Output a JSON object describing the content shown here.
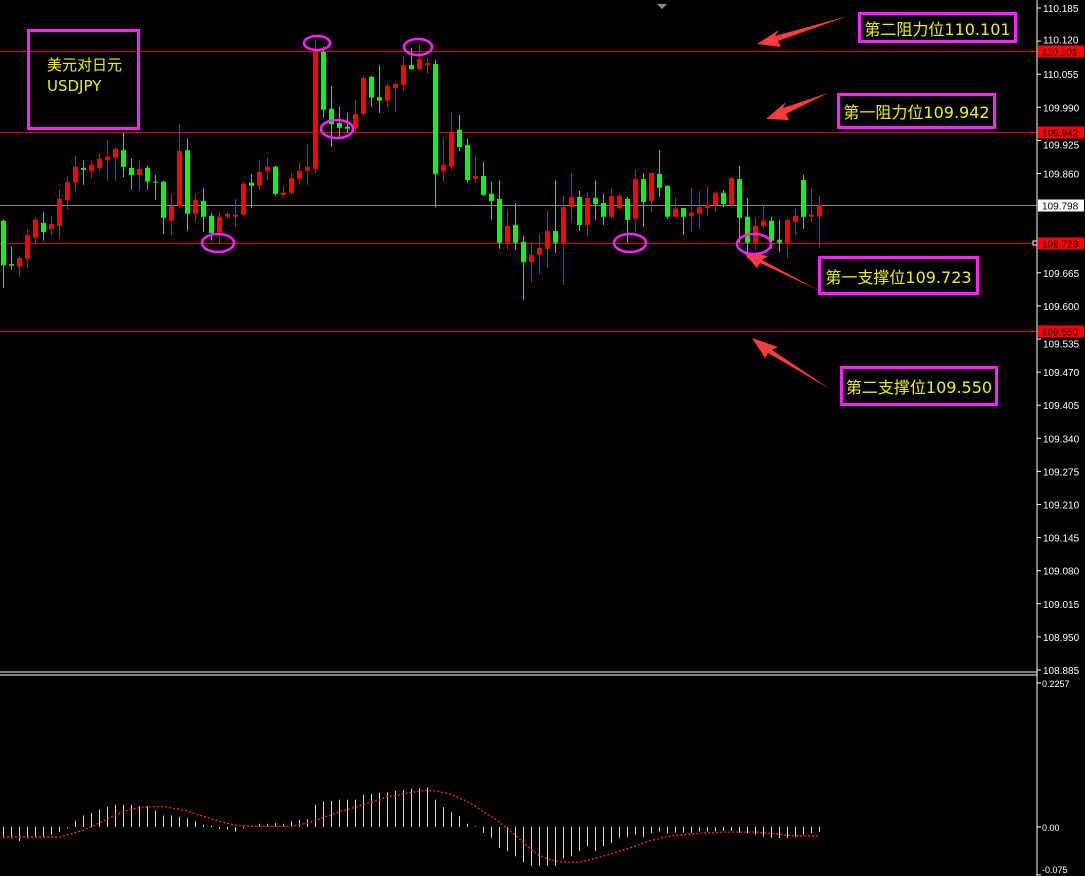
{
  "symbol": {
    "name_cn": "美元对日元",
    "name": "USDJPY"
  },
  "annotations": {
    "r2": "第二阻力位110.101",
    "r1": "第一阻力位109.942",
    "s1": "第一支撑位109.723",
    "s2": "第二支撑位109.550"
  },
  "colors": {
    "bull": "#00ff00",
    "bear": "#ff0000",
    "level": "#e00000",
    "current": "#8c8c8c",
    "signal": "#ff2020",
    "hist": "#d8d8d8",
    "annotation_box": "#ff22ff",
    "annotation_text": "#f2f200",
    "arrow": "#ff3c3c"
  },
  "chart_data": [
    {
      "type": "candlestick",
      "title": "",
      "ylim": [
        108.885,
        110.185
      ],
      "y_ticks": [
        "110.185",
        "110.120",
        "110.055",
        "109.990",
        "109.925",
        "109.860",
        "109.665",
        "109.600",
        "109.535",
        "109.470",
        "109.405",
        "109.340",
        "109.275",
        "109.210",
        "109.145",
        "109.080",
        "109.015",
        "108.950",
        "108.885"
      ],
      "levels": [
        {
          "value": 110.101,
          "label": "110.101",
          "kind": "resistance"
        },
        {
          "value": 109.942,
          "label": "109.942",
          "kind": "resistance"
        },
        {
          "value": 109.723,
          "label": "109.723",
          "kind": "support"
        },
        {
          "value": 109.55,
          "label": "109.550",
          "kind": "support"
        }
      ],
      "current_price": {
        "value": 109.798,
        "label": "109.798"
      },
      "ohlc": [
        [
          109.68,
          109.77,
          109.635,
          109.767
        ],
        [
          109.679,
          109.716,
          109.671,
          109.682
        ],
        [
          109.694,
          109.698,
          109.657,
          109.677
        ],
        [
          109.739,
          109.751,
          109.675,
          109.692
        ],
        [
          109.769,
          109.773,
          109.72,
          109.734
        ],
        [
          109.745,
          109.785,
          109.728,
          109.763
        ],
        [
          109.761,
          109.777,
          109.739,
          109.751
        ],
        [
          109.81,
          109.828,
          109.732,
          109.757
        ],
        [
          109.844,
          109.855,
          109.789,
          109.808
        ],
        [
          109.873,
          109.895,
          109.824,
          109.842
        ],
        [
          109.867,
          109.885,
          109.838,
          109.871
        ],
        [
          109.877,
          109.887,
          109.851,
          109.865
        ],
        [
          109.889,
          109.9,
          109.865,
          109.871
        ],
        [
          109.893,
          109.926,
          109.846,
          109.887
        ],
        [
          109.908,
          109.91,
          109.846,
          109.891
        ],
        [
          109.873,
          109.94,
          109.853,
          109.906
        ],
        [
          109.857,
          109.889,
          109.828,
          109.871
        ],
        [
          109.869,
          109.887,
          109.826,
          109.857
        ],
        [
          109.844,
          109.875,
          109.828,
          109.871
        ],
        [
          109.842,
          109.857,
          109.808,
          109.844
        ],
        [
          109.773,
          109.846,
          109.741,
          109.844
        ],
        [
          109.796,
          109.82,
          109.739,
          109.767
        ],
        [
          109.904,
          109.957,
          109.792,
          109.796
        ],
        [
          109.781,
          109.928,
          109.747,
          109.906
        ],
        [
          109.808,
          109.82,
          109.765,
          109.781
        ],
        [
          109.775,
          109.832,
          109.745,
          109.806
        ],
        [
          109.743,
          109.783,
          109.728,
          109.777
        ],
        [
          109.775,
          109.783,
          109.72,
          109.745
        ],
        [
          109.781,
          109.785,
          109.771,
          109.775
        ],
        [
          109.779,
          109.81,
          109.755,
          109.775
        ],
        [
          109.84,
          109.844,
          109.777,
          109.779
        ],
        [
          109.836,
          109.859,
          109.792,
          109.842
        ],
        [
          109.863,
          109.887,
          109.828,
          109.836
        ],
        [
          109.873,
          109.891,
          109.847,
          109.865
        ],
        [
          109.82,
          109.875,
          109.816,
          109.873
        ],
        [
          109.822,
          109.836,
          109.812,
          109.818
        ],
        [
          109.851,
          109.861,
          109.818,
          109.822
        ],
        [
          109.865,
          109.881,
          109.838,
          109.849
        ],
        [
          109.873,
          109.916,
          109.838,
          109.865
        ],
        [
          110.101,
          110.122,
          109.861,
          109.869
        ],
        [
          109.985,
          110.109,
          109.97,
          110.099
        ],
        [
          109.957,
          110.032,
          109.912,
          109.987
        ],
        [
          109.95,
          109.991,
          109.932,
          109.959
        ],
        [
          109.948,
          109.979,
          109.94,
          109.952
        ],
        [
          109.977,
          110.005,
          109.94,
          109.948
        ],
        [
          110.048,
          110.052,
          109.973,
          109.977
        ],
        [
          110.009,
          110.052,
          109.991,
          110.05
        ],
        [
          110.003,
          110.073,
          109.979,
          110.01
        ],
        [
          110.032,
          110.038,
          109.991,
          110.003
        ],
        [
          110.036,
          110.038,
          109.981,
          110.028
        ],
        [
          110.073,
          110.091,
          110.022,
          110.034
        ],
        [
          110.065,
          110.107,
          110.064,
          110.073
        ],
        [
          110.085,
          110.113,
          110.064,
          110.065
        ],
        [
          110.077,
          110.087,
          110.056,
          110.073
        ],
        [
          109.859,
          110.083,
          109.794,
          110.075
        ],
        [
          109.877,
          109.93,
          109.844,
          109.865
        ],
        [
          109.942,
          109.981,
          109.867,
          109.873
        ],
        [
          109.912,
          109.975,
          109.904,
          109.946
        ],
        [
          109.847,
          109.928,
          109.842,
          109.916
        ],
        [
          109.855,
          109.893,
          109.842,
          109.849
        ],
        [
          109.818,
          109.883,
          109.816,
          109.855
        ],
        [
          109.806,
          109.844,
          109.769,
          109.82
        ],
        [
          109.724,
          109.846,
          109.712,
          109.81
        ],
        [
          109.757,
          109.789,
          109.71,
          109.724
        ],
        [
          109.724,
          109.802,
          109.71,
          109.759
        ],
        [
          109.686,
          109.738,
          109.612,
          109.726
        ],
        [
          109.7,
          109.724,
          109.647,
          109.686
        ],
        [
          109.714,
          109.741,
          109.663,
          109.7
        ],
        [
          109.747,
          109.787,
          109.675,
          109.712
        ],
        [
          109.724,
          109.846,
          109.704,
          109.747
        ],
        [
          109.794,
          109.816,
          109.641,
          109.724
        ],
        [
          109.814,
          109.861,
          109.765,
          109.794
        ],
        [
          109.759,
          109.826,
          109.747,
          109.814
        ],
        [
          109.812,
          109.824,
          109.736,
          109.759
        ],
        [
          109.8,
          109.846,
          109.769,
          109.812
        ],
        [
          109.775,
          109.82,
          109.759,
          109.802
        ],
        [
          109.816,
          109.83,
          109.771,
          109.775
        ],
        [
          109.816,
          109.82,
          109.789,
          109.792
        ],
        [
          109.769,
          109.814,
          109.724,
          109.81
        ],
        [
          109.849,
          109.867,
          109.745,
          109.771
        ],
        [
          109.804,
          109.861,
          109.755,
          109.849
        ],
        [
          109.861,
          109.861,
          109.785,
          109.806
        ],
        [
          109.832,
          109.906,
          109.814,
          109.859
        ],
        [
          109.775,
          109.836,
          109.771,
          109.836
        ],
        [
          109.791,
          109.812,
          109.773,
          109.775
        ],
        [
          109.775,
          109.792,
          109.739,
          109.792
        ],
        [
          109.783,
          109.832,
          109.745,
          109.777
        ],
        [
          109.794,
          109.826,
          109.751,
          109.781
        ],
        [
          109.798,
          109.834,
          109.777,
          109.792
        ],
        [
          109.822,
          109.826,
          109.785,
          109.798
        ],
        [
          109.8,
          109.828,
          109.794,
          109.822
        ],
        [
          109.851,
          109.853,
          109.794,
          109.798
        ],
        [
          109.773,
          109.875,
          109.724,
          109.849
        ],
        [
          109.724,
          109.812,
          109.694,
          109.775
        ],
        [
          109.757,
          109.773,
          109.71,
          109.724
        ],
        [
          109.767,
          109.798,
          109.751,
          109.757
        ],
        [
          109.728,
          109.775,
          109.712,
          109.767
        ],
        [
          109.724,
          109.769,
          109.706,
          109.73
        ],
        [
          109.769,
          109.771,
          109.694,
          109.724
        ],
        [
          109.777,
          109.792,
          109.739,
          109.765
        ],
        [
          109.775,
          109.857,
          109.751,
          109.847
        ],
        [
          109.779,
          109.83,
          109.765,
          109.775
        ],
        [
          109.798,
          109.816,
          109.714,
          109.775
        ]
      ]
    },
    {
      "type": "bar+line",
      "title": "",
      "ylim": [
        -0.075,
        0.2257
      ],
      "y_ticks": [
        "0.2257",
        "0.00",
        "-0.075"
      ],
      "histogram": [
        -0.015,
        -0.018,
        -0.022,
        -0.018,
        -0.015,
        -0.015,
        -0.012,
        -0.008,
        -0.002,
        0.01,
        0.018,
        0.022,
        0.027,
        0.032,
        0.035,
        0.035,
        0.035,
        0.033,
        0.033,
        0.025,
        0.018,
        0.018,
        0.016,
        0.014,
        0.009,
        0.004,
        0.002,
        -0.003,
        -0.004,
        -0.007,
        -0.002,
        0.002,
        0.005,
        0.005,
        0.006,
        0.005,
        0.009,
        0.011,
        0.012,
        0.035,
        0.04,
        0.041,
        0.043,
        0.043,
        0.043,
        0.05,
        0.052,
        0.054,
        0.054,
        0.057,
        0.058,
        0.06,
        0.061,
        0.062,
        0.043,
        0.031,
        0.023,
        0.017,
        0.005,
        0.001,
        -0.009,
        -0.017,
        -0.033,
        -0.038,
        -0.046,
        -0.055,
        -0.061,
        -0.061,
        -0.061,
        -0.061,
        -0.049,
        -0.046,
        -0.038,
        -0.03,
        -0.038,
        -0.03,
        -0.025,
        -0.017,
        -0.015,
        -0.012,
        -0.015,
        -0.01,
        -0.007,
        -0.01,
        -0.009,
        -0.009,
        -0.009,
        -0.007,
        -0.007,
        -0.007,
        -0.006,
        -0.006,
        -0.009,
        -0.01,
        -0.012,
        -0.015,
        -0.017,
        -0.017,
        -0.017,
        -0.015,
        -0.012,
        -0.01,
        -0.008
      ],
      "signal": [
        -0.016,
        -0.016,
        -0.016,
        -0.016,
        -0.016,
        -0.016,
        -0.016,
        -0.016,
        -0.012,
        -0.009,
        -0.005,
        0.0,
        0.006,
        0.012,
        0.019,
        0.024,
        0.028,
        0.03,
        0.031,
        0.032,
        0.032,
        0.03,
        0.028,
        0.025,
        0.021,
        0.017,
        0.013,
        0.009,
        0.006,
        0.003,
        0.002,
        0.001,
        0.001,
        0.001,
        0.001,
        0.001,
        0.001,
        0.004,
        0.006,
        0.01,
        0.015,
        0.019,
        0.024,
        0.027,
        0.031,
        0.035,
        0.039,
        0.042,
        0.048,
        0.049,
        0.052,
        0.054,
        0.056,
        0.057,
        0.057,
        0.054,
        0.051,
        0.046,
        0.04,
        0.033,
        0.024,
        0.017,
        0.008,
        -0.002,
        -0.012,
        -0.024,
        -0.035,
        -0.044,
        -0.05,
        -0.053,
        -0.055,
        -0.055,
        -0.055,
        -0.053,
        -0.049,
        -0.046,
        -0.042,
        -0.038,
        -0.034,
        -0.03,
        -0.025,
        -0.021,
        -0.018,
        -0.015,
        -0.013,
        -0.012,
        -0.011,
        -0.01,
        -0.009,
        -0.009,
        -0.008,
        -0.008,
        -0.008,
        -0.008,
        -0.008,
        -0.009,
        -0.01,
        -0.011,
        -0.013,
        -0.014,
        -0.014,
        -0.014,
        -0.014
      ]
    }
  ]
}
